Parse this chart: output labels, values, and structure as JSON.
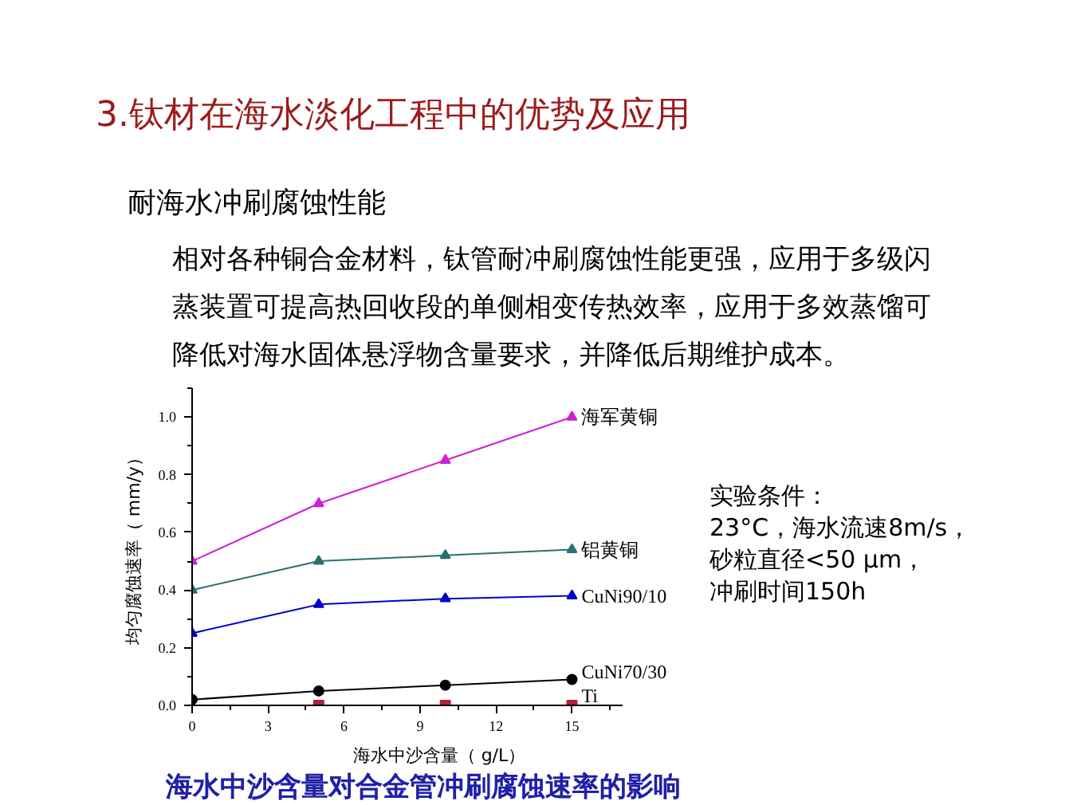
{
  "chart_data": {
    "type": "line",
    "title": "3.钛材在海水淡化工程中的优势及应用",
    "subtitle": "耐海水冲刷腐蚀性能",
    "xlabel": "海水中沙含量（ g/L）",
    "ylabel": "均匀腐蚀速率（ mm/y）",
    "annotations": [
      "相对各种铜合金材料，钛管耐冲刷腐蚀性能更强，应用于多级闪蒸装置可提高热回收段的单侧相变传热效率，应用于多效蒸馏可降低对海水固体悬浮物含量要求，并降低后期维护成本。",
      "实验条件：",
      "23°C，海水流速8m/s，砂粒直径<50 μm，冲刷时间150h",
      "海水中沙含量对合金管冲刷腐蚀速率的影响"
    ],
    "x": [
      0,
      5,
      10,
      15
    ],
    "series": [
      {
        "name": "海军黄铜",
        "color": "#d21ed2",
        "marker": "triangle",
        "values": [
          0.5,
          0.7,
          0.85,
          1.0
        ]
      },
      {
        "name": "铝黄铜",
        "color": "#2a7070",
        "marker": "triangle",
        "values": [
          0.4,
          0.5,
          0.52,
          0.54
        ]
      },
      {
        "name": "CuNi90/10",
        "color": "#0000c8",
        "marker": "triangle",
        "values": [
          0.25,
          0.35,
          0.37,
          0.38
        ]
      },
      {
        "name": "CuNi70/30",
        "color": "#000000",
        "marker": "circle",
        "values": [
          0.02,
          0.05,
          0.07,
          0.09
        ]
      },
      {
        "name": "Ti",
        "type": "scatter",
        "color": "#b4203c",
        "marker": "square",
        "values": [
          null,
          0,
          0,
          0
        ]
      }
    ],
    "xlim": [
      0,
      17
    ],
    "ylim": [
      0,
      1.1
    ],
    "xticks": [
      0,
      {
        "value": 1.5,
        "label": null
      },
      3,
      {
        "value": 4.5,
        "label": null
      },
      6,
      {
        "value": 7.5,
        "label": null
      },
      9,
      {
        "value": 10.5,
        "label": null
      },
      12,
      {
        "value": 13.5,
        "label": null
      },
      15,
      {
        "value": 16.5,
        "label": null
      }
    ],
    "yticks": [
      {
        "value": 0,
        "label": "0.0"
      },
      {
        "value": 0.1,
        "label": null
      },
      0.2,
      {
        "value": 0.3,
        "label": null
      },
      0.4,
      {
        "value": 0.5,
        "label": null
      },
      0.6,
      {
        "value": 0.7,
        "label": null
      },
      0.8,
      {
        "value": 0.9,
        "label": null
      },
      {
        "value": 1,
        "label": "1.0"
      },
      {
        "value": 1.1,
        "label": null
      }
    ],
    "legend": false,
    "grid": false
  }
}
